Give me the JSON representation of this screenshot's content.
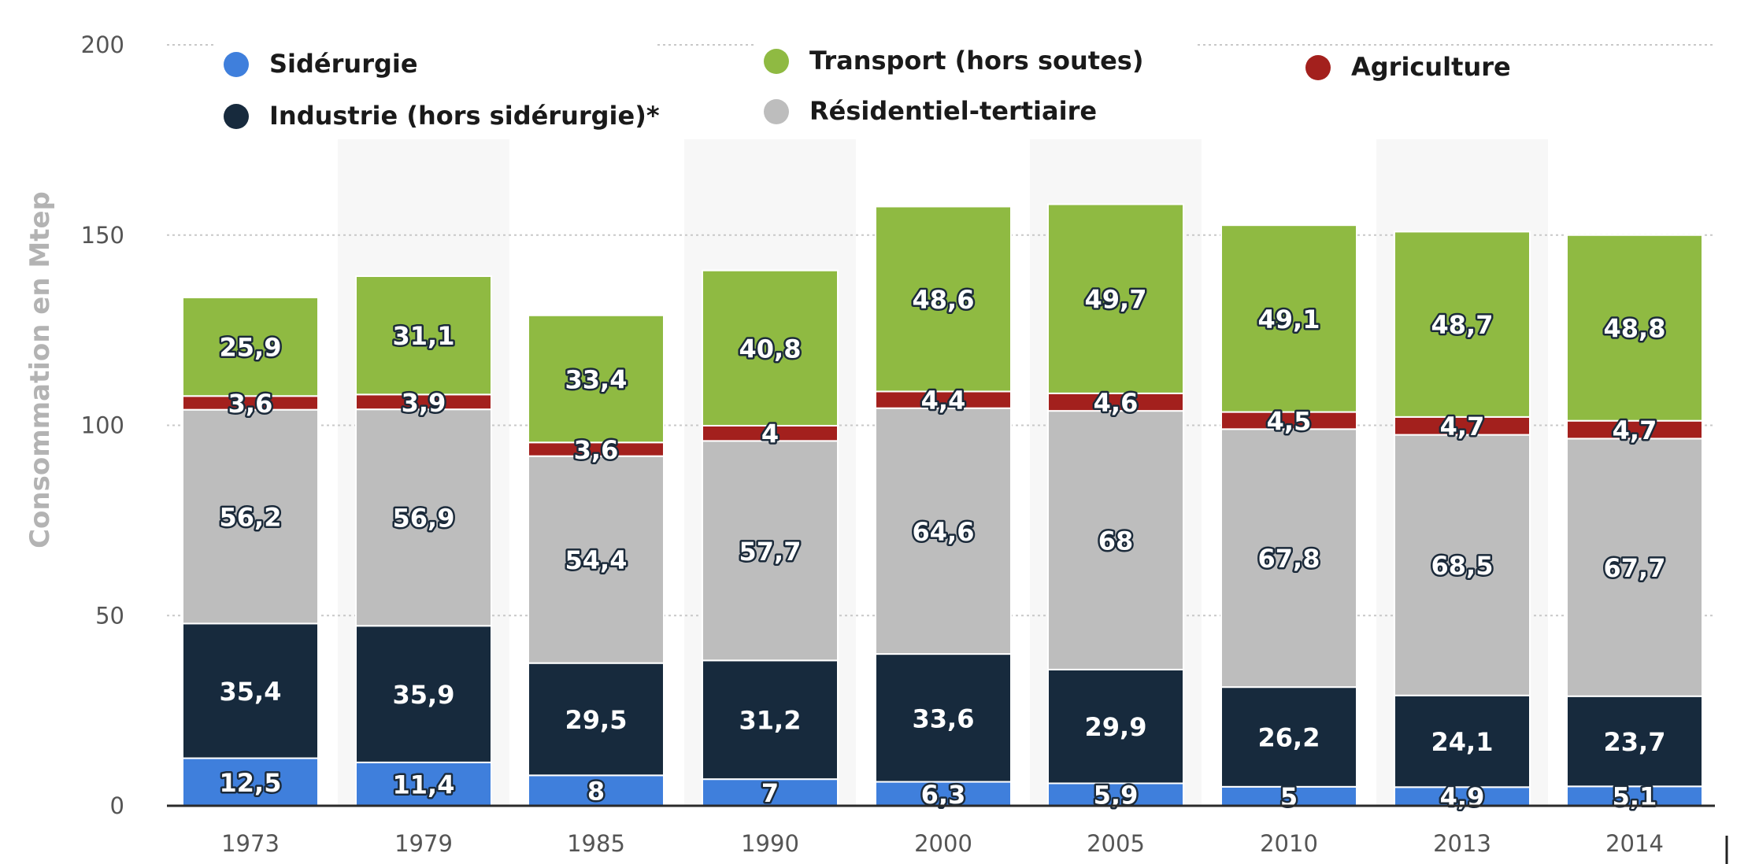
{
  "chart_data": {
    "type": "bar",
    "stacked": true,
    "categories": [
      "1973",
      "1979",
      "1985",
      "1990",
      "2000",
      "2005",
      "2010",
      "2013",
      "2014"
    ],
    "ylabel": "Consommation en Mtep",
    "xlabel": "",
    "ylim": [
      0,
      200
    ],
    "yticks": [
      "0",
      "50",
      "100",
      "150",
      "200"
    ],
    "grid": true,
    "legend_position": "top",
    "series": [
      {
        "name": "Sidérurgie",
        "color": "#3f7fdc",
        "values": [
          12.5,
          11.4,
          8,
          7,
          6.3,
          5.9,
          5,
          4.9,
          5.1
        ],
        "labels": [
          "12,5",
          "11,4",
          "8",
          "7",
          "6,3",
          "5,9",
          "5",
          "4,9",
          "5,1"
        ]
      },
      {
        "name": "Industrie (hors sidérurgie)*",
        "color": "#172a3d",
        "values": [
          35.4,
          35.9,
          29.5,
          31.2,
          33.6,
          29.9,
          26.2,
          24.1,
          23.7
        ],
        "labels": [
          "35,4",
          "35,9",
          "29,5",
          "31,2",
          "33,6",
          "29,9",
          "26,2",
          "24,1",
          "23,7"
        ]
      },
      {
        "name": "Résidentiel-tertiaire",
        "color": "#bdbdbd",
        "values": [
          56.2,
          56.9,
          54.4,
          57.7,
          64.6,
          68,
          67.8,
          68.5,
          67.7
        ],
        "labels": [
          "56,2",
          "56,9",
          "54,4",
          "57,7",
          "64,6",
          "68",
          "67,8",
          "68,5",
          "67,7"
        ]
      },
      {
        "name": "Agriculture",
        "color": "#a3201d",
        "values": [
          3.6,
          3.9,
          3.6,
          4,
          4.4,
          4.6,
          4.5,
          4.7,
          4.7
        ],
        "labels": [
          "3,6",
          "3,9",
          "3,6",
          "4",
          "4,4",
          "4,6",
          "4,5",
          "4,7",
          "4,7"
        ]
      },
      {
        "name": "Transport (hors soutes)",
        "color": "#8fba42",
        "values": [
          25.9,
          31.1,
          33.4,
          40.8,
          48.6,
          49.7,
          49.1,
          48.7,
          48.8
        ],
        "labels": [
          "25,9",
          "31,1",
          "33,4",
          "40,8",
          "48,6",
          "49,7",
          "49,1",
          "48,7",
          "48,8"
        ]
      }
    ]
  }
}
